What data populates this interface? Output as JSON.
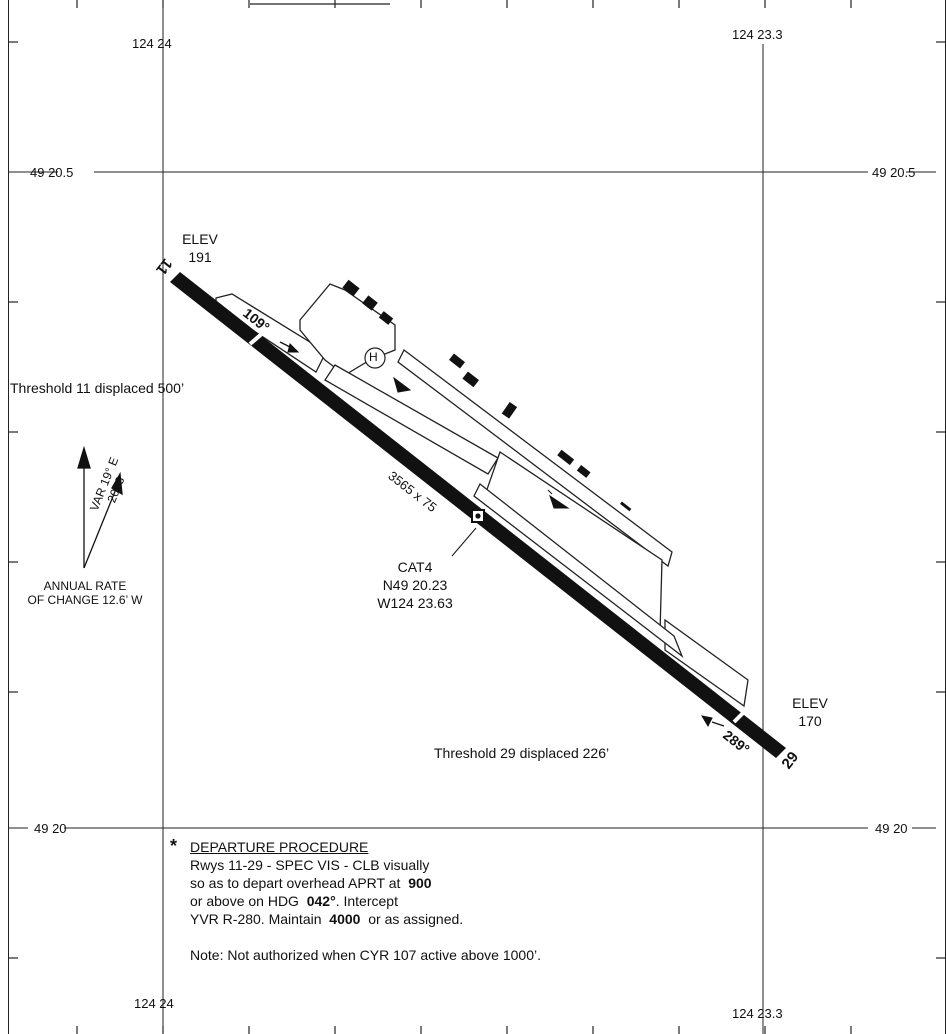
{
  "grid": {
    "lon_west": "124 24",
    "lon_east": "124 23.3",
    "lat_north": "49 20.5",
    "lat_south": "49 20"
  },
  "runway": {
    "end_west": "11",
    "end_east": "29",
    "heading_west": "109°",
    "heading_east": "289°",
    "dimensions": "3565 x 75",
    "elev_west_label": "ELEV",
    "elev_west_value": "191",
    "elev_east_label": "ELEV",
    "elev_east_value": "170",
    "threshold_11": "Threshold 11 displaced 500’",
    "threshold_29": "Threshold 29 displaced 226’"
  },
  "arp": {
    "cat": "CAT4",
    "lat": "N49 20.23",
    "lon": "W124 23.63"
  },
  "helipad": "H",
  "magvar": {
    "var": "VAR 19° E",
    "year": "2003",
    "rate_line1": "ANNUAL RATE",
    "rate_line2": "OF CHANGE 12.6’ W"
  },
  "departure": {
    "star": "*",
    "title": "DEPARTURE PROCEDURE",
    "line1": "Rwys 11-29 - SPEC VIS - CLB visually",
    "line2a": "so as to depart overhead APRT at",
    "alt1": "900",
    "line3a": "or above on HDG",
    "hdg": "042°",
    "line3b": ".  Intercept",
    "line4a": "YVR R-280.  Maintain",
    "alt2": "4000",
    "line4b": "or as assigned.",
    "note": "Note: Not authorized when CYR 107 active above 1000’."
  }
}
